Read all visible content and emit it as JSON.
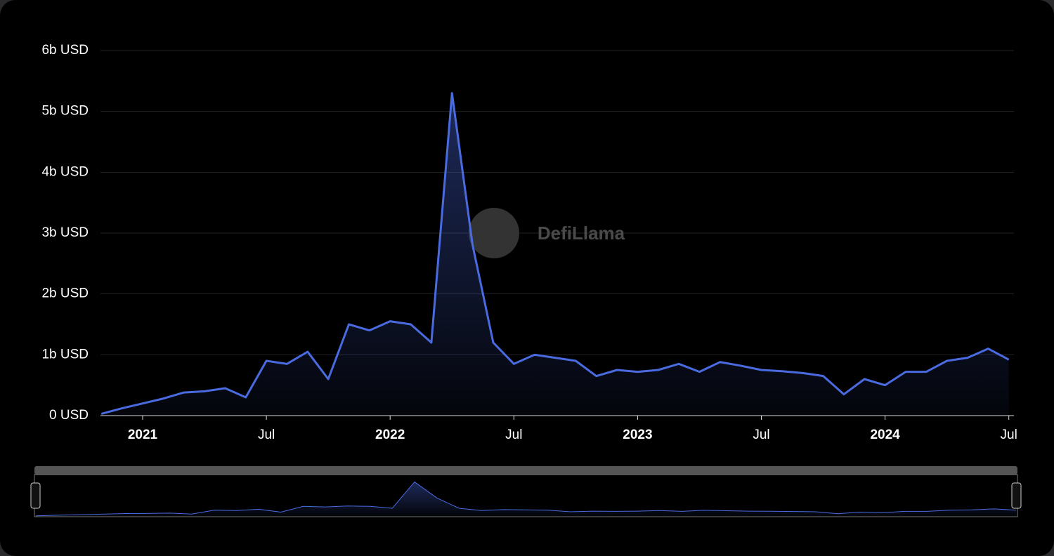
{
  "chart_data": {
    "type": "area",
    "watermark": "DefiLlama",
    "color": "#4a6ae0",
    "x": [
      "2020-11",
      "2020-12",
      "2021-01",
      "2021-02",
      "2021-03",
      "2021-04",
      "2021-05",
      "2021-06",
      "2021-07",
      "2021-08",
      "2021-09",
      "2021-10",
      "2021-11",
      "2021-12",
      "2022-01",
      "2022-02",
      "2022-03",
      "2022-04",
      "2022-05",
      "2022-06",
      "2022-07",
      "2022-08",
      "2022-09",
      "2022-10",
      "2022-11",
      "2022-12",
      "2023-01",
      "2023-02",
      "2023-03",
      "2023-04",
      "2023-05",
      "2023-06",
      "2023-07",
      "2023-08",
      "2023-09",
      "2023-10",
      "2023-11",
      "2023-12",
      "2024-01",
      "2024-02",
      "2024-03",
      "2024-04",
      "2024-05",
      "2024-06",
      "2024-07"
    ],
    "values": [
      0.03,
      0.12,
      0.2,
      0.28,
      0.38,
      0.4,
      0.45,
      0.3,
      0.9,
      0.85,
      1.05,
      0.6,
      1.5,
      1.4,
      1.55,
      1.5,
      1.2,
      5.3,
      2.8,
      1.2,
      0.85,
      1.0,
      0.95,
      0.9,
      0.65,
      0.75,
      0.72,
      0.75,
      0.85,
      0.72,
      0.88,
      0.82,
      0.75,
      0.73,
      0.7,
      0.65,
      0.35,
      0.6,
      0.5,
      0.72,
      0.72,
      0.9,
      0.95,
      1.1,
      0.92
    ],
    "ylim": [
      0,
      6
    ],
    "yticks": [
      {
        "value": 0,
        "label": "0 USD"
      },
      {
        "value": 1,
        "label": "1b USD"
      },
      {
        "value": 2,
        "label": "2b USD"
      },
      {
        "value": 3,
        "label": "3b USD"
      },
      {
        "value": 4,
        "label": "4b USD"
      },
      {
        "value": 5,
        "label": "5b USD"
      },
      {
        "value": 6,
        "label": "6b USD"
      }
    ],
    "xticks": [
      {
        "value": "2021-01",
        "label": "2021"
      },
      {
        "value": "2021-07",
        "label": "Jul"
      },
      {
        "value": "2022-01",
        "label": "2022"
      },
      {
        "value": "2022-07",
        "label": "Jul"
      },
      {
        "value": "2023-01",
        "label": "2023"
      },
      {
        "value": "2023-07",
        "label": "Jul"
      },
      {
        "value": "2024-01",
        "label": "2024"
      },
      {
        "value": "2024-07",
        "label": "Jul"
      }
    ],
    "grid": true
  }
}
